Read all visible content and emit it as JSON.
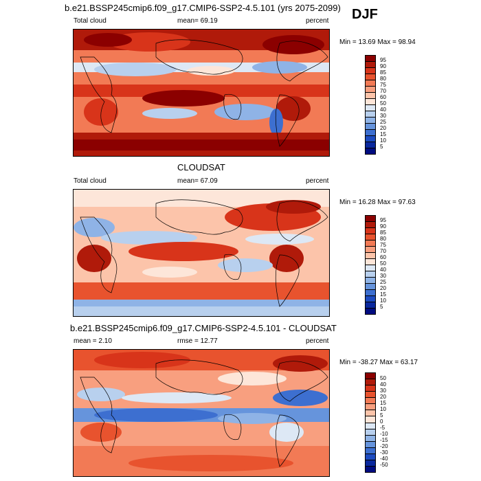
{
  "season": "DJF",
  "panels": [
    {
      "title": "b.e21.BSSP245cmip6.f09_g17.CMIP6-SSP2-4.5.101 (yrs 2075-2099)",
      "left_label": "Total cloud",
      "mid_label": "mean=  69.19",
      "right_label": "percent",
      "minmax": "Min = 13.69 Max = 98.94",
      "ticks": [
        "95",
        "90",
        "85",
        "80",
        "75",
        "70",
        "60",
        "50",
        "40",
        "30",
        "25",
        "20",
        "15",
        "10",
        "5"
      ]
    },
    {
      "title": "CLOUDSAT",
      "left_label": "Total cloud",
      "mid_label": "mean=  67.09",
      "right_label": "percent",
      "minmax": "Min = 16.28 Max = 97.63",
      "ticks": [
        "95",
        "90",
        "85",
        "80",
        "75",
        "70",
        "60",
        "50",
        "40",
        "30",
        "25",
        "20",
        "15",
        "10",
        "5"
      ]
    },
    {
      "title": "b.e21.BSSP245cmip6.f09_g17.CMIP6-SSP2-4.5.101 - CLOUDSAT",
      "left_label": "mean =   2.10",
      "mid_label": "rmse =  12.77",
      "right_label": "percent",
      "minmax": "Min = -38.27 Max = 63.17",
      "ticks": [
        "50",
        "40",
        "30",
        "20",
        "15",
        "10",
        "5",
        "0",
        "-5",
        "-10",
        "-15",
        "-20",
        "-30",
        "-40",
        "-50"
      ]
    }
  ],
  "colors": [
    "#8b0000",
    "#b01a0a",
    "#d8341a",
    "#e8532e",
    "#f27a55",
    "#f89f7f",
    "#fcc4aa",
    "#fde6d9",
    "#dde8f5",
    "#b8d0ee",
    "#8fb3e6",
    "#6694dc",
    "#3d6fd0",
    "#1d4bc0",
    "#0a289e",
    "#000c80"
  ]
}
